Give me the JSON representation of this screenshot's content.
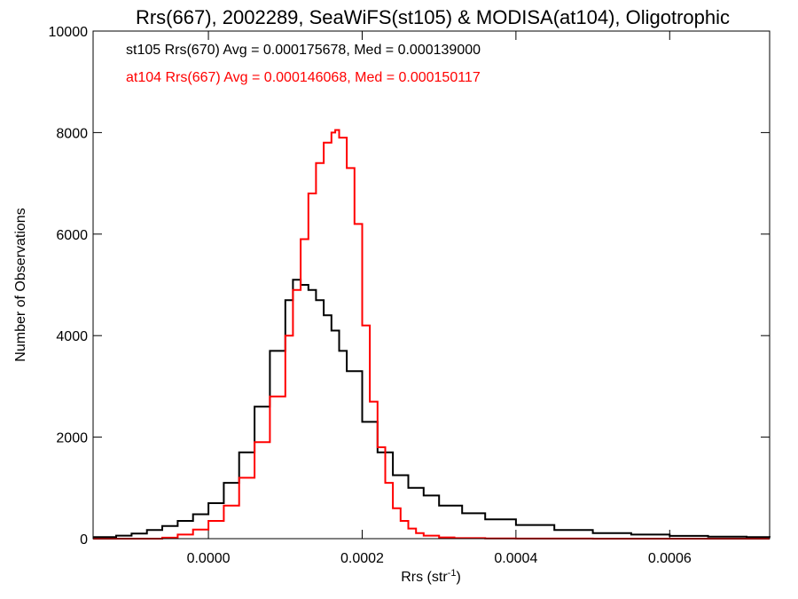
{
  "chart_data": {
    "type": "line",
    "title": "Rrs(667), 2002289, SeaWiFS(st105) & MODISA(at104), Oligotrophic",
    "xlabel": "Rrs (str",
    "xlabel_sup": "-1",
    "xlabel_close": ")",
    "ylabel": "Number of Observations",
    "xlim": [
      -0.00015,
      0.00073
    ],
    "ylim": [
      0,
      10000
    ],
    "x_ticks": [
      0.0,
      0.0002,
      0.0004,
      0.0006
    ],
    "x_tick_labels": [
      "0.0000",
      "0.0002",
      "0.0004",
      "0.0006"
    ],
    "y_ticks": [
      0,
      2000,
      4000,
      6000,
      8000,
      10000
    ],
    "y_tick_labels": [
      "0",
      "2000",
      "4000",
      "6000",
      "8000",
      "10000"
    ],
    "grid": false,
    "legend_position": "top-left",
    "annotations": [
      {
        "text": "st105 Rrs(670) Avg = 0.000175678, Med = 0.000139000",
        "color": "#000000"
      },
      {
        "text": "at104 Rrs(667) Avg = 0.000146068, Med = 0.000150117",
        "color": "#ff0000"
      }
    ],
    "series": [
      {
        "color": "#000000",
        "x": [
          -0.00015,
          -0.00012,
          -0.0001,
          -8e-05,
          -6e-05,
          -4e-05,
          -2e-05,
          0.0,
          2e-05,
          4e-05,
          6e-05,
          8e-05,
          0.0001,
          0.00011,
          0.00012,
          0.00013,
          0.00014,
          0.00015,
          0.00016,
          0.00017,
          0.00018,
          0.0002,
          0.00022,
          0.00024,
          0.00026,
          0.00028,
          0.0003,
          0.00033,
          0.00036,
          0.0004,
          0.00045,
          0.0005,
          0.00055,
          0.0006,
          0.00065,
          0.0007,
          0.00073
        ],
        "y": [
          30,
          60,
          100,
          170,
          250,
          350,
          480,
          700,
          1100,
          1700,
          2600,
          3700,
          4700,
          5100,
          5000,
          4900,
          4700,
          4400,
          4100,
          3700,
          3300,
          2300,
          1700,
          1250,
          1000,
          850,
          650,
          500,
          380,
          270,
          170,
          110,
          80,
          55,
          40,
          30,
          25
        ]
      },
      {
        "color": "#ff0000",
        "x": [
          -0.00015,
          -0.00012,
          -0.0001,
          -8e-05,
          -6e-05,
          -4e-05,
          -2e-05,
          0.0,
          2e-05,
          4e-05,
          6e-05,
          8e-05,
          0.0001,
          0.00011,
          0.00012,
          0.00013,
          0.00014,
          0.00015,
          0.00016,
          0.000165,
          0.00017,
          0.00018,
          0.00019,
          0.0002,
          0.00021,
          0.00022,
          0.00023,
          0.00024,
          0.00025,
          0.00026,
          0.00027,
          0.00028,
          0.0003,
          0.00032,
          0.00036,
          0.0004,
          0.0005,
          0.0006,
          0.00073
        ],
        "y": [
          0,
          0,
          0,
          0,
          20,
          80,
          180,
          350,
          650,
          1200,
          1900,
          2800,
          4000,
          4900,
          5900,
          6800,
          7400,
          7800,
          8000,
          8050,
          7900,
          7300,
          6200,
          4200,
          2700,
          1800,
          1100,
          600,
          350,
          200,
          110,
          60,
          25,
          10,
          4,
          2,
          0,
          0,
          0
        ]
      }
    ]
  }
}
